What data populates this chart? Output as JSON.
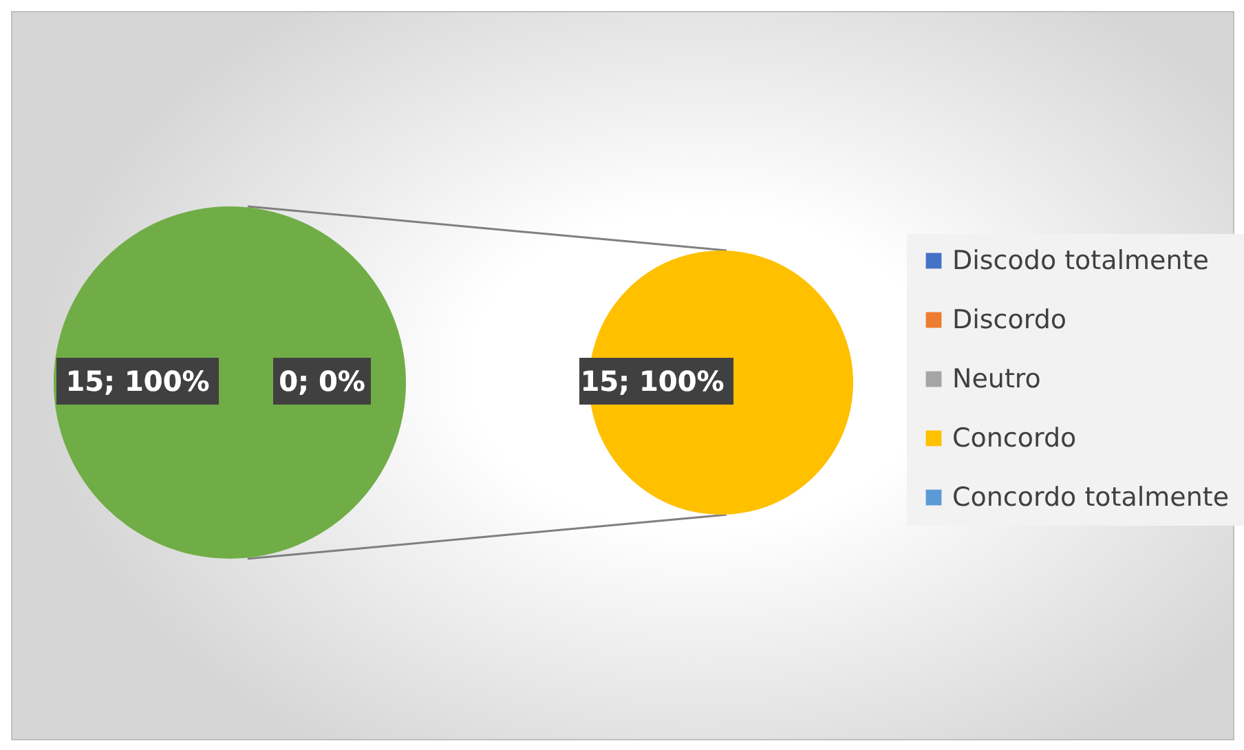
{
  "chart_data": [
    {
      "type": "pie",
      "categories": [
        null,
        null
      ],
      "values": [
        15,
        0
      ],
      "colors": [
        "#70ad47",
        "#70ad47"
      ],
      "value_labels": [
        "15; 100%",
        "0; 0%"
      ]
    },
    {
      "type": "pie",
      "categories": [
        "Discodo totalmente",
        "Discordo",
        "Neutro",
        "Concordo",
        "Concordo totalmente"
      ],
      "values": [
        0,
        0,
        0,
        15,
        0
      ],
      "colors": [
        "#4472c4",
        "#ed7d31",
        "#a5a5a5",
        "#ffc000",
        "#5b9bd5"
      ],
      "value_labels": [
        null,
        null,
        null,
        "15; 100%",
        null
      ],
      "legend": "right"
    }
  ]
}
